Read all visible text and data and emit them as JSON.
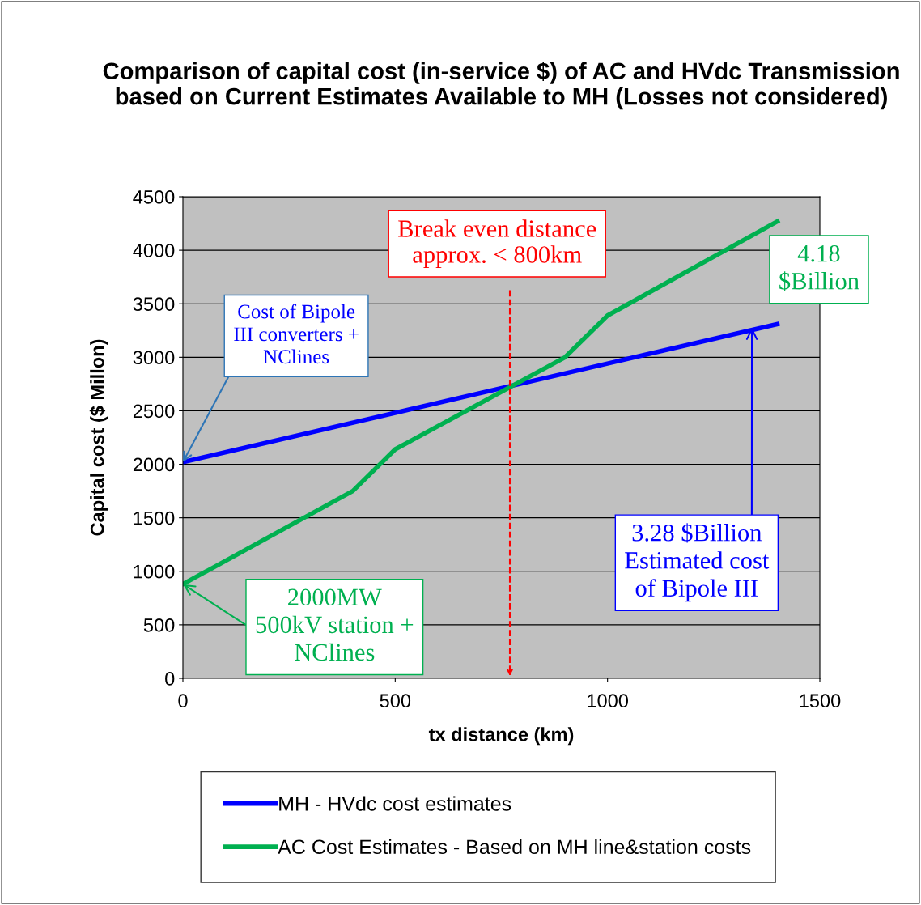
{
  "chart_data": {
    "type": "line",
    "title": "Comparison of capital cost (in-service $) of AC and HVdc Transmission based on Current Estimates Available to MH (Losses not considered)",
    "xlabel": "tx distance (km)",
    "ylabel": "Capital cost ($ Millon)",
    "series": [
      {
        "name": "MH - HVdc cost estimates",
        "color": "#0000ff",
        "x": [
          0,
          1400
        ],
        "values": [
          2020,
          3310
        ]
      },
      {
        "name": "AC Cost Estimates - Based on MH line&station costs",
        "color": "#00b050",
        "x": [
          0,
          400,
          500,
          900,
          1000,
          1400
        ],
        "values": [
          880,
          1750,
          2140,
          3000,
          3390,
          4270
        ]
      }
    ],
    "xlim": [
      0,
      1500
    ],
    "xticks": [
      0,
      500,
      1000,
      1500
    ],
    "ylim": [
      0,
      4500
    ],
    "yticks": [
      0,
      500,
      1000,
      1500,
      2000,
      2500,
      3000,
      3500,
      4000,
      4500
    ],
    "grid": "y",
    "legend": "bottom",
    "marker": "none",
    "line_style": "solid",
    "ref_lines": [
      {
        "axis": "x",
        "value": 770,
        "label": "Break even distance\napprox. < 800km",
        "color": "#ff0000",
        "line_style": "dashed"
      }
    ],
    "annotations": [
      {
        "text": "Cost of Bipole\nIII converters +\nNClines",
        "x": 0,
        "y": 2020
      },
      {
        "text": "2000MW\n500kV station +\nNClines",
        "x": 0,
        "y": 880
      },
      {
        "text": "3.28 $Billion\nEstimated cost\nof Bipole III",
        "x": 1340,
        "y": 3280
      },
      {
        "text": "4.18\n$Billion",
        "x": 1400,
        "y": 4270
      }
    ]
  }
}
